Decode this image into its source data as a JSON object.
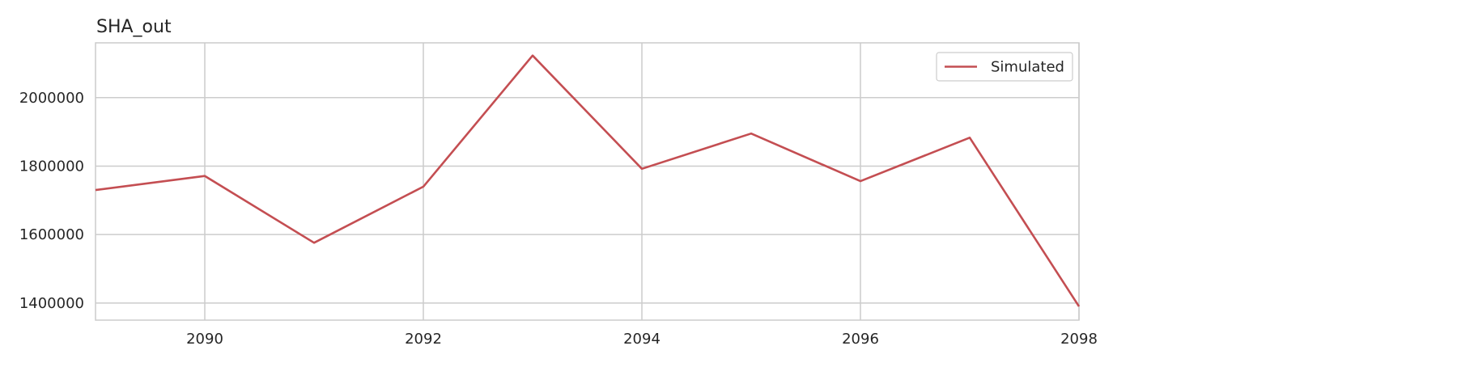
{
  "chart_data": {
    "type": "line",
    "title": "SHA_out",
    "xlabel": "",
    "ylabel": "",
    "xlim": [
      2089,
      2098
    ],
    "ylim": [
      1350000,
      2160000
    ],
    "x_ticks": [
      2090,
      2092,
      2094,
      2096,
      2098
    ],
    "y_ticks": [
      1400000,
      1600000,
      1800000,
      2000000
    ],
    "grid": true,
    "legend": {
      "placement": "top-right"
    },
    "series": [
      {
        "name": "Simulated",
        "color": "#c44e52",
        "x": [
          2089,
          2090,
          2091,
          2092,
          2093,
          2094,
          2095,
          2096,
          2097,
          2098
        ],
        "y": [
          1730000,
          1771000,
          1576000,
          1740000,
          2123000,
          1792000,
          1895000,
          1756000,
          1883000,
          1390000
        ]
      }
    ]
  }
}
